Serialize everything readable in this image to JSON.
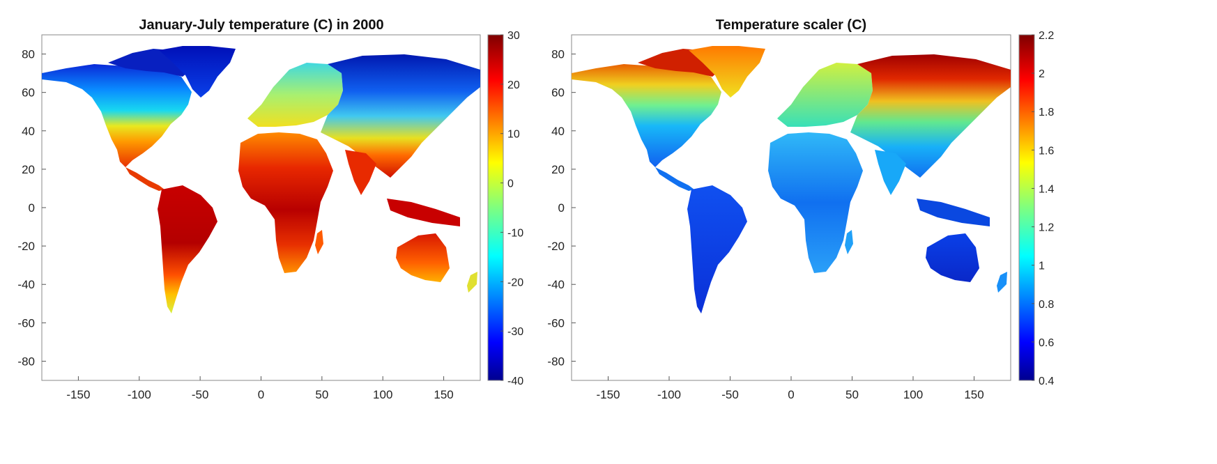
{
  "panels": [
    {
      "id": "temperature",
      "title": "January-July temperature (C) in 2000",
      "x_ticks": [
        "-150",
        "-100",
        "-50",
        "0",
        "50",
        "100",
        "150"
      ],
      "y_ticks": [
        "80",
        "60",
        "40",
        "20",
        "0",
        "-20",
        "-40",
        "-60",
        "-80"
      ],
      "colorbar": {
        "min": -40,
        "max": 30,
        "ticks": [
          "30",
          "20",
          "10",
          "0",
          "-10",
          "-20",
          "-30",
          "-40"
        ]
      }
    },
    {
      "id": "scaler",
      "title": "Temperature scaler (C)",
      "x_ticks": [
        "-150",
        "-100",
        "-50",
        "0",
        "50",
        "100",
        "150"
      ],
      "y_ticks": [
        "80",
        "60",
        "40",
        "20",
        "0",
        "-20",
        "-40",
        "-60",
        "-80"
      ],
      "colorbar": {
        "min": 0.4,
        "max": 2.2,
        "ticks": [
          "2.2",
          "2",
          "1.8",
          "1.6",
          "1.4",
          "1.2",
          "1",
          "0.8",
          "0.6",
          "0.4"
        ]
      }
    }
  ],
  "chart_data": [
    {
      "type": "heatmap",
      "title": "January-July temperature (C) in 2000",
      "xlim": [
        -180,
        180
      ],
      "ylim": [
        -90,
        90
      ],
      "colormap": "jet",
      "color_range": [
        -40,
        30
      ],
      "colorbar_ticks": [
        30,
        20,
        10,
        0,
        -10,
        -20,
        -30,
        -40
      ],
      "grid": false,
      "legend": "colorbar-right"
    },
    {
      "type": "heatmap",
      "title": "Temperature scaler (C)",
      "xlim": [
        -180,
        180
      ],
      "ylim": [
        -90,
        90
      ],
      "colormap": "jet",
      "color_range": [
        0.4,
        2.2
      ],
      "colorbar_ticks": [
        2.2,
        2,
        1.8,
        1.6,
        1.4,
        1.2,
        1,
        0.8,
        0.6,
        0.4
      ],
      "grid": false,
      "legend": "colorbar-right"
    }
  ]
}
